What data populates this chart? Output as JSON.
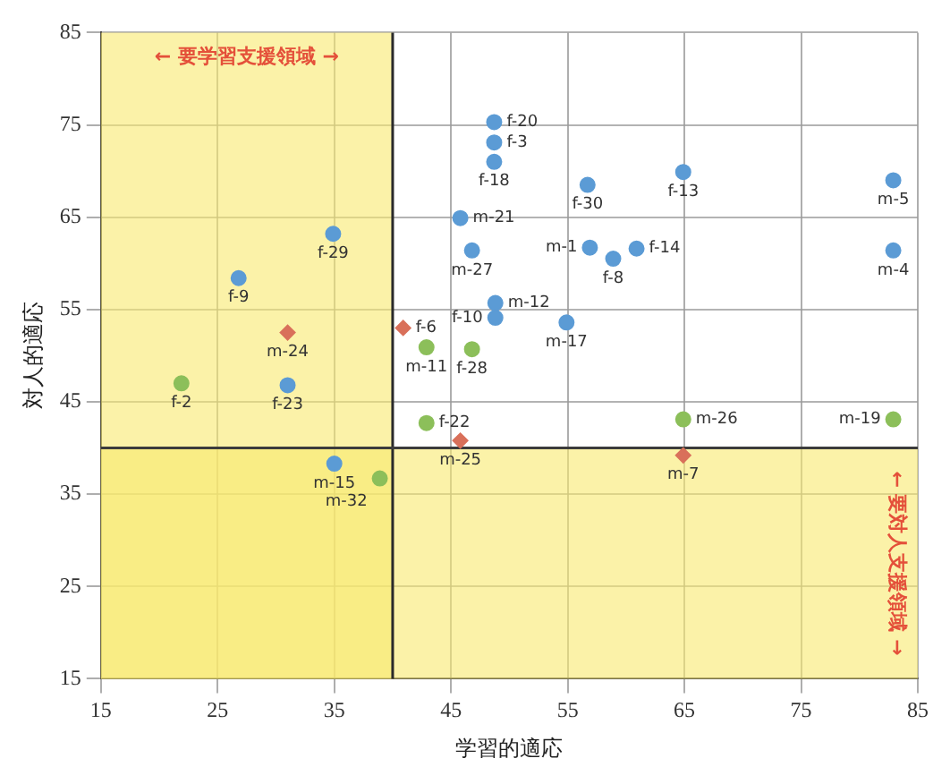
{
  "chart_data": {
    "type": "scatter",
    "xlabel": "学習的適応",
    "ylabel": "対人的適応",
    "xlim": [
      15,
      85
    ],
    "xticks": [
      15,
      25,
      35,
      45,
      55,
      65,
      75,
      85
    ],
    "ylim": [
      15,
      85
    ],
    "yticks": [
      15,
      25,
      35,
      45,
      55,
      65,
      75,
      85
    ],
    "grid": true,
    "series": [
      {
        "color": "#5b9bd5",
        "marker": "circle",
        "x": [
          48.7,
          48.7,
          48.7,
          56.7,
          64.9,
          82.9,
          45.8,
          46.8,
          56.9,
          58.9,
          60.9,
          82.9,
          48.8,
          48.8,
          54.9,
          34.9,
          26.8,
          31.0,
          35.0
        ],
        "values": [
          75.3,
          73.1,
          71.0,
          68.5,
          69.9,
          69.0,
          64.9,
          61.4,
          61.7,
          60.5,
          61.6,
          61.4,
          55.7,
          54.1,
          53.6,
          63.2,
          58.4,
          46.8,
          38.3
        ]
      },
      {
        "color": "#8cbf5a",
        "marker": "circle",
        "x": [
          21.9,
          42.9,
          46.8,
          42.9,
          38.9,
          64.9,
          82.9
        ],
        "values": [
          47.0,
          50.9,
          50.7,
          42.7,
          36.7,
          43.1,
          43.1
        ]
      },
      {
        "color": "#d9705a",
        "marker": "diamond",
        "x": [
          31.0,
          40.9,
          45.8,
          64.9
        ],
        "values": [
          52.5,
          53.0,
          40.8,
          39.2
        ]
      }
    ],
    "bands": [
      {
        "axis": "x",
        "from": 15,
        "to": 40,
        "label": "← 要学習支援領域 →",
        "color": "#f8ea6e"
      },
      {
        "axis": "y",
        "from": 15,
        "to": 40,
        "label": "← 要対人支援領域 →",
        "color": "#f8ea6e"
      }
    ],
    "ref_lines": [
      {
        "axis": "x",
        "value": 40,
        "color": "#2a2a2a"
      },
      {
        "axis": "y",
        "value": 40,
        "color": "#3c3c3c"
      }
    ],
    "annotations": [
      {
        "text": "f-20",
        "x": 48.7,
        "y": 75.3
      },
      {
        "text": "f-3",
        "x": 48.7,
        "y": 73.1
      },
      {
        "text": "f-18",
        "x": 48.7,
        "y": 71.0
      },
      {
        "text": "f-30",
        "x": 56.7,
        "y": 68.5
      },
      {
        "text": "f-13",
        "x": 64.9,
        "y": 69.9
      },
      {
        "text": "m-5",
        "x": 82.9,
        "y": 69.0
      },
      {
        "text": "m-21",
        "x": 45.8,
        "y": 64.9
      },
      {
        "text": "m-27",
        "x": 46.8,
        "y": 61.4
      },
      {
        "text": "m-1",
        "x": 56.9,
        "y": 61.7
      },
      {
        "text": "f-8",
        "x": 58.9,
        "y": 60.5
      },
      {
        "text": "f-14",
        "x": 60.9,
        "y": 61.6
      },
      {
        "text": "m-4",
        "x": 82.9,
        "y": 61.4
      },
      {
        "text": "m-12",
        "x": 48.8,
        "y": 55.7
      },
      {
        "text": "f-10",
        "x": 48.8,
        "y": 54.1
      },
      {
        "text": "m-17",
        "x": 54.9,
        "y": 53.6
      },
      {
        "text": "f-29",
        "x": 34.9,
        "y": 63.2
      },
      {
        "text": "f-9",
        "x": 26.8,
        "y": 58.4
      },
      {
        "text": "f-23",
        "x": 31.0,
        "y": 46.8
      },
      {
        "text": "m-15",
        "x": 35.0,
        "y": 38.3
      },
      {
        "text": "f-2",
        "x": 21.9,
        "y": 47.0
      },
      {
        "text": "m-11",
        "x": 42.9,
        "y": 50.9
      },
      {
        "text": "f-28",
        "x": 46.8,
        "y": 50.7
      },
      {
        "text": "f-22",
        "x": 42.9,
        "y": 42.7
      },
      {
        "text": "m-32",
        "x": 38.9,
        "y": 36.7
      },
      {
        "text": "m-26",
        "x": 64.9,
        "y": 43.1
      },
      {
        "text": "m-19",
        "x": 82.9,
        "y": 43.1
      },
      {
        "text": "m-24",
        "x": 31.0,
        "y": 52.5
      },
      {
        "text": "f-6",
        "x": 40.9,
        "y": 53.0
      },
      {
        "text": "m-25",
        "x": 45.8,
        "y": 40.8
      },
      {
        "text": "m-7",
        "x": 64.9,
        "y": 39.2
      }
    ]
  }
}
